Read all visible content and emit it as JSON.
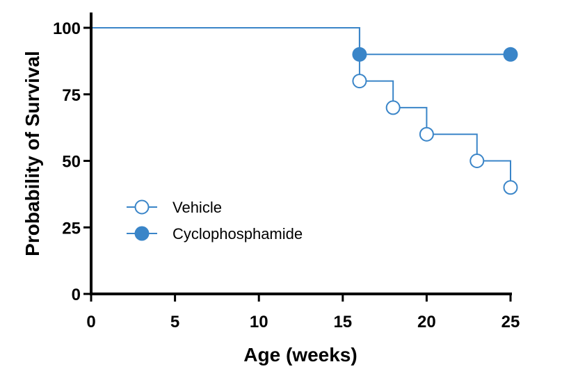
{
  "chart_data": {
    "type": "line",
    "subtype": "kaplan-meier-step",
    "title": "",
    "xlabel": "Age (weeks)",
    "ylabel": "Probability of Survival",
    "xlim": [
      0,
      25
    ],
    "ylim": [
      0,
      100
    ],
    "x_ticks": [
      0,
      5,
      10,
      15,
      20,
      25
    ],
    "y_ticks": [
      0,
      25,
      50,
      75,
      100
    ],
    "grid": false,
    "legend_position": "center-left",
    "color": "#3a85c8",
    "series": [
      {
        "name": "Vehicle",
        "marker": "open-circle",
        "steps": [
          [
            0,
            100
          ],
          [
            16,
            80
          ],
          [
            18,
            70
          ],
          [
            20,
            60
          ],
          [
            23,
            50
          ],
          [
            25,
            40
          ]
        ],
        "points": [
          [
            16,
            80
          ],
          [
            18,
            70
          ],
          [
            20,
            60
          ],
          [
            23,
            50
          ],
          [
            25,
            40
          ]
        ]
      },
      {
        "name": "Cyclophosphamide",
        "marker": "filled-circle",
        "steps": [
          [
            0,
            100
          ],
          [
            16,
            90
          ],
          [
            25,
            90
          ]
        ],
        "points": [
          [
            16,
            90
          ],
          [
            25,
            90
          ]
        ]
      }
    ]
  }
}
